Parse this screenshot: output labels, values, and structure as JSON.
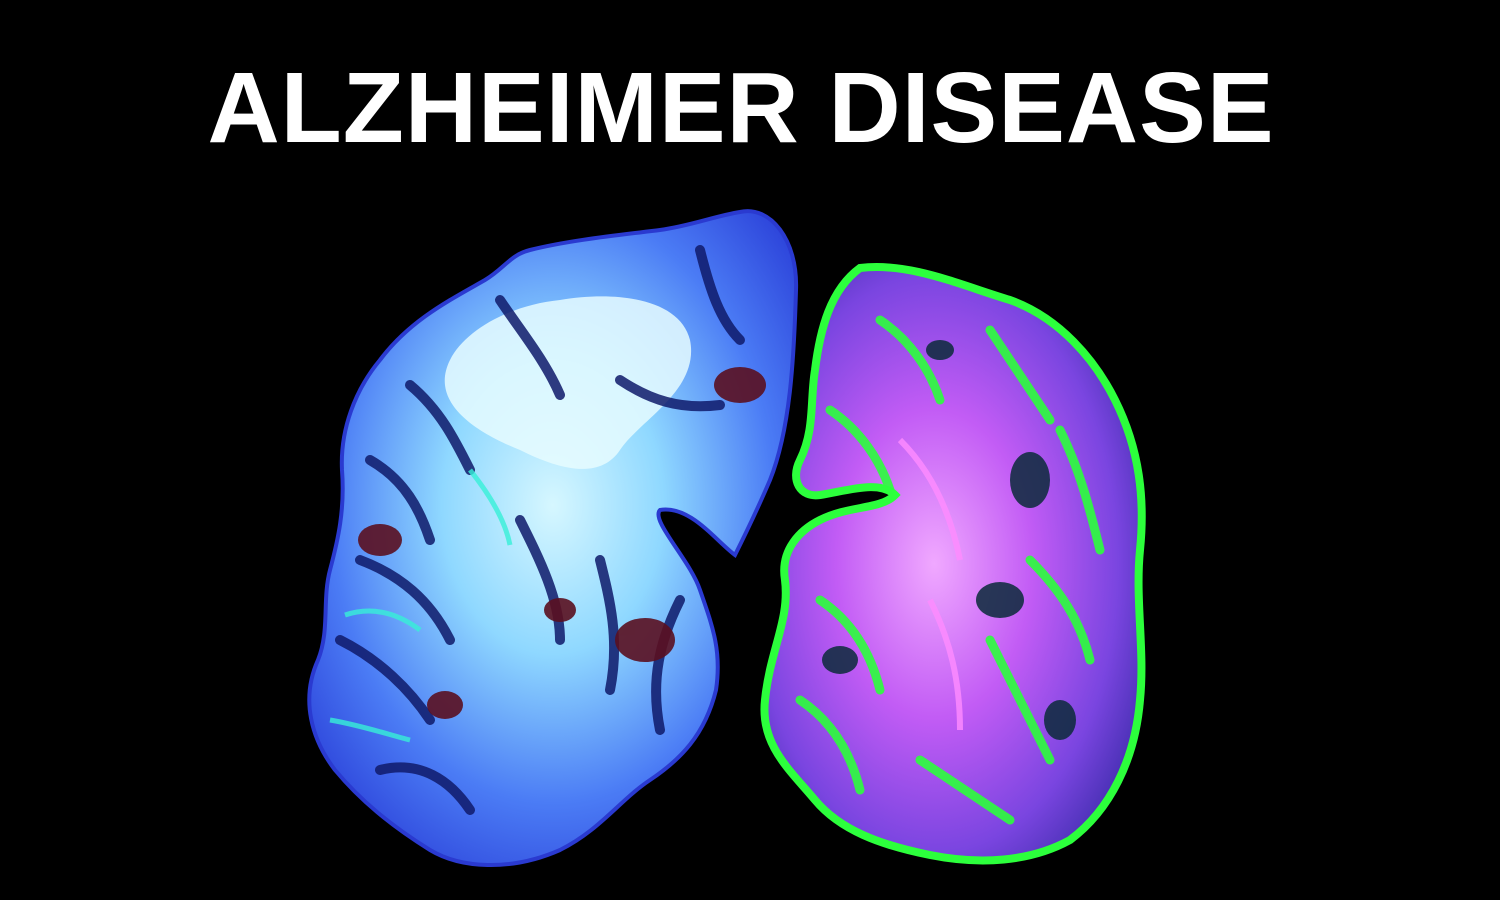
{
  "title": "ALZHEIMER DISEASE",
  "colors": {
    "background": "#000000",
    "title_text": "#ffffff",
    "left_hemisphere_base": "#3a5cf0",
    "left_hemisphere_light": "#bfefff",
    "left_hemisphere_dark": "#5a1020",
    "right_hemisphere_base": "#c04cf0",
    "right_hemisphere_accent": "#2cff3c",
    "right_hemisphere_dark": "#0a2a3a"
  },
  "image": {
    "subject": "brain-slice-illustration"
  }
}
